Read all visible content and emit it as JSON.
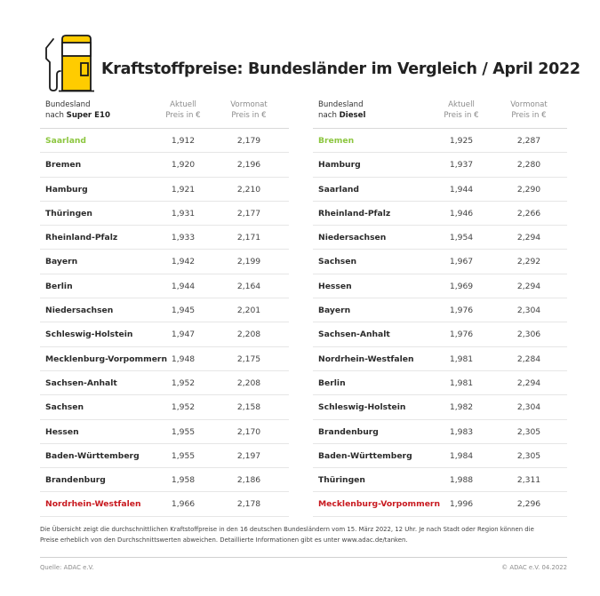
{
  "header": {
    "title": "Kraftstoffpreise: Bundesländer im Vergleich / April 2022",
    "icon": "fuel-pump-icon",
    "icon_color": "#ffcc00"
  },
  "colors": {
    "cheapest": "#8cc63f",
    "most_expensive": "#c8191f",
    "accent": "#ffcc00"
  },
  "tables": {
    "super": {
      "col_label_line1": "Bundesland",
      "col_label_prefix": "nach ",
      "col_label_fuel": "Super E10",
      "col_current_1": "Aktuell",
      "col_current_2": "Preis in €",
      "col_prev_1": "Vormonat",
      "col_prev_2": "Preis in €",
      "rows": [
        {
          "state": "Saarland",
          "current": "1,912",
          "previous": "2,179",
          "highlight": "best"
        },
        {
          "state": "Bremen",
          "current": "1,920",
          "previous": "2,196"
        },
        {
          "state": "Hamburg",
          "current": "1,921",
          "previous": "2,210"
        },
        {
          "state": "Thüringen",
          "current": "1,931",
          "previous": "2,177"
        },
        {
          "state": "Rheinland-Pfalz",
          "current": "1,933",
          "previous": "2,171"
        },
        {
          "state": "Bayern",
          "current": "1,942",
          "previous": "2,199"
        },
        {
          "state": "Berlin",
          "current": "1,944",
          "previous": "2,164"
        },
        {
          "state": "Niedersachsen",
          "current": "1,945",
          "previous": "2,201"
        },
        {
          "state": "Schleswig-Holstein",
          "current": "1,947",
          "previous": "2,208"
        },
        {
          "state": "Mecklenburg-Vorpommern",
          "current": "1,948",
          "previous": "2,175"
        },
        {
          "state": "Sachsen-Anhalt",
          "current": "1,952",
          "previous": "2,208"
        },
        {
          "state": "Sachsen",
          "current": "1,952",
          "previous": "2,158"
        },
        {
          "state": "Hessen",
          "current": "1,955",
          "previous": "2,170"
        },
        {
          "state": "Baden-Württemberg",
          "current": "1,955",
          "previous": "2,197"
        },
        {
          "state": "Brandenburg",
          "current": "1,958",
          "previous": "2,186"
        },
        {
          "state": "Nordrhein-Westfalen",
          "current": "1,966",
          "previous": "2,178",
          "highlight": "worst"
        }
      ]
    },
    "diesel": {
      "col_label_line1": "Bundesland",
      "col_label_prefix": "nach ",
      "col_label_fuel": "Diesel",
      "col_current_1": "Aktuell",
      "col_current_2": "Preis in €",
      "col_prev_1": "Vormonat",
      "col_prev_2": "Preis in €",
      "rows": [
        {
          "state": "Bremen",
          "current": "1,925",
          "previous": "2,287",
          "highlight": "best"
        },
        {
          "state": "Hamburg",
          "current": "1,937",
          "previous": "2,280"
        },
        {
          "state": "Saarland",
          "current": "1,944",
          "previous": "2,290"
        },
        {
          "state": "Rheinland-Pfalz",
          "current": "1,946",
          "previous": "2,266"
        },
        {
          "state": "Niedersachsen",
          "current": "1,954",
          "previous": "2,294"
        },
        {
          "state": "Sachsen",
          "current": "1,967",
          "previous": "2,292"
        },
        {
          "state": "Hessen",
          "current": "1,969",
          "previous": "2,294"
        },
        {
          "state": "Bayern",
          "current": "1,976",
          "previous": "2,304"
        },
        {
          "state": "Sachsen-Anhalt",
          "current": "1,976",
          "previous": "2,306"
        },
        {
          "state": "Nordrhein-Westfalen",
          "current": "1,981",
          "previous": "2,284"
        },
        {
          "state": "Berlin",
          "current": "1,981",
          "previous": "2,294"
        },
        {
          "state": "Schleswig-Holstein",
          "current": "1,982",
          "previous": "2,304"
        },
        {
          "state": "Brandenburg",
          "current": "1,983",
          "previous": "2,305"
        },
        {
          "state": "Baden-Württemberg",
          "current": "1,984",
          "previous": "2,305"
        },
        {
          "state": "Thüringen",
          "current": "1,988",
          "previous": "2,311"
        },
        {
          "state": "Mecklenburg-Vorpommern",
          "current": "1,996",
          "previous": "2,296",
          "highlight": "worst"
        }
      ]
    }
  },
  "footer": {
    "note_line1": "Die Übersicht zeigt die durchschnittlichen Kraftstoffpreise in den 16 deutschen Bundesländern vom 15. März 2022, 12 Uhr. Je nach Stadt oder Region können die",
    "note_line2": "Preise erheblich von den Durchschnittswerten abweichen. Detaillierte Informationen gibt es unter www.adac.de/tanken.",
    "source": "Quelle: ADAC e.V.",
    "copyright": "© ADAC e.V. 04.2022"
  }
}
